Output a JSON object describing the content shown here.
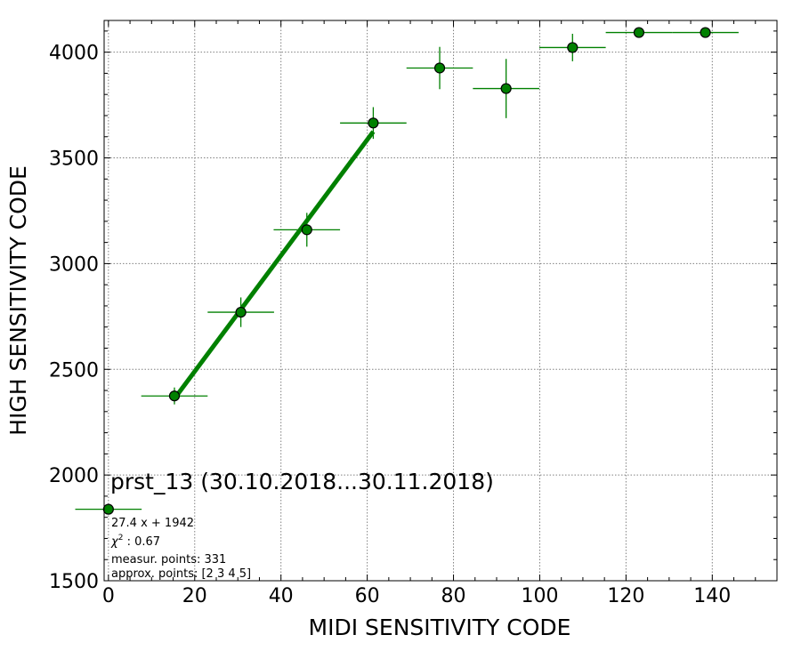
{
  "chart_data": {
    "type": "scatter",
    "title": "prst_13 (30.10.2018...30.11.2018)",
    "xlabel": "MIDI SENSITIVITY CODE",
    "ylabel": "HIGH SENSITIVITY CODE",
    "xlim": [
      -1,
      155
    ],
    "ylim": [
      1500,
      4150
    ],
    "xticks": [
      0,
      20,
      40,
      60,
      80,
      100,
      120,
      140
    ],
    "yticks": [
      1500,
      2000,
      2500,
      3000,
      3500,
      4000
    ],
    "grid": true,
    "colors": {
      "marker": "#008000",
      "fit_line": "#008000",
      "errorbar": "#008000",
      "grid": "#808080"
    },
    "points": [
      {
        "x": 0,
        "y": 1838,
        "xerr": 7.7,
        "yerr": 0
      },
      {
        "x": 15.3,
        "y": 2374,
        "xerr": 7.7,
        "yerr": 40
      },
      {
        "x": 30.7,
        "y": 2770,
        "xerr": 7.7,
        "yerr": 70
      },
      {
        "x": 46.0,
        "y": 3160,
        "xerr": 7.7,
        "yerr": 80
      },
      {
        "x": 61.4,
        "y": 3665,
        "xerr": 7.7,
        "yerr": 75
      },
      {
        "x": 76.8,
        "y": 3925,
        "xerr": 7.7,
        "yerr": 100
      },
      {
        "x": 92.2,
        "y": 3828,
        "xerr": 7.7,
        "yerr": 140
      },
      {
        "x": 107.6,
        "y": 4022,
        "xerr": 7.7,
        "yerr": 65
      },
      {
        "x": 123.0,
        "y": 4093,
        "xerr": 7.7,
        "yerr": 0
      },
      {
        "x": 138.4,
        "y": 4093,
        "xerr": 7.7,
        "yerr": 0
      }
    ],
    "fit": {
      "slope": 27.4,
      "intercept": 1942,
      "x_range": [
        15.3,
        61.4
      ]
    },
    "annotations": {
      "equation": "27.4 x + 1942",
      "chi2_prefix": "χ",
      "chi2_exponent": "2",
      "chi2_value": " : 0.67",
      "measured_points": "measur. points: 331",
      "approx_points": "approx. points: [2 3 4 5]"
    }
  }
}
